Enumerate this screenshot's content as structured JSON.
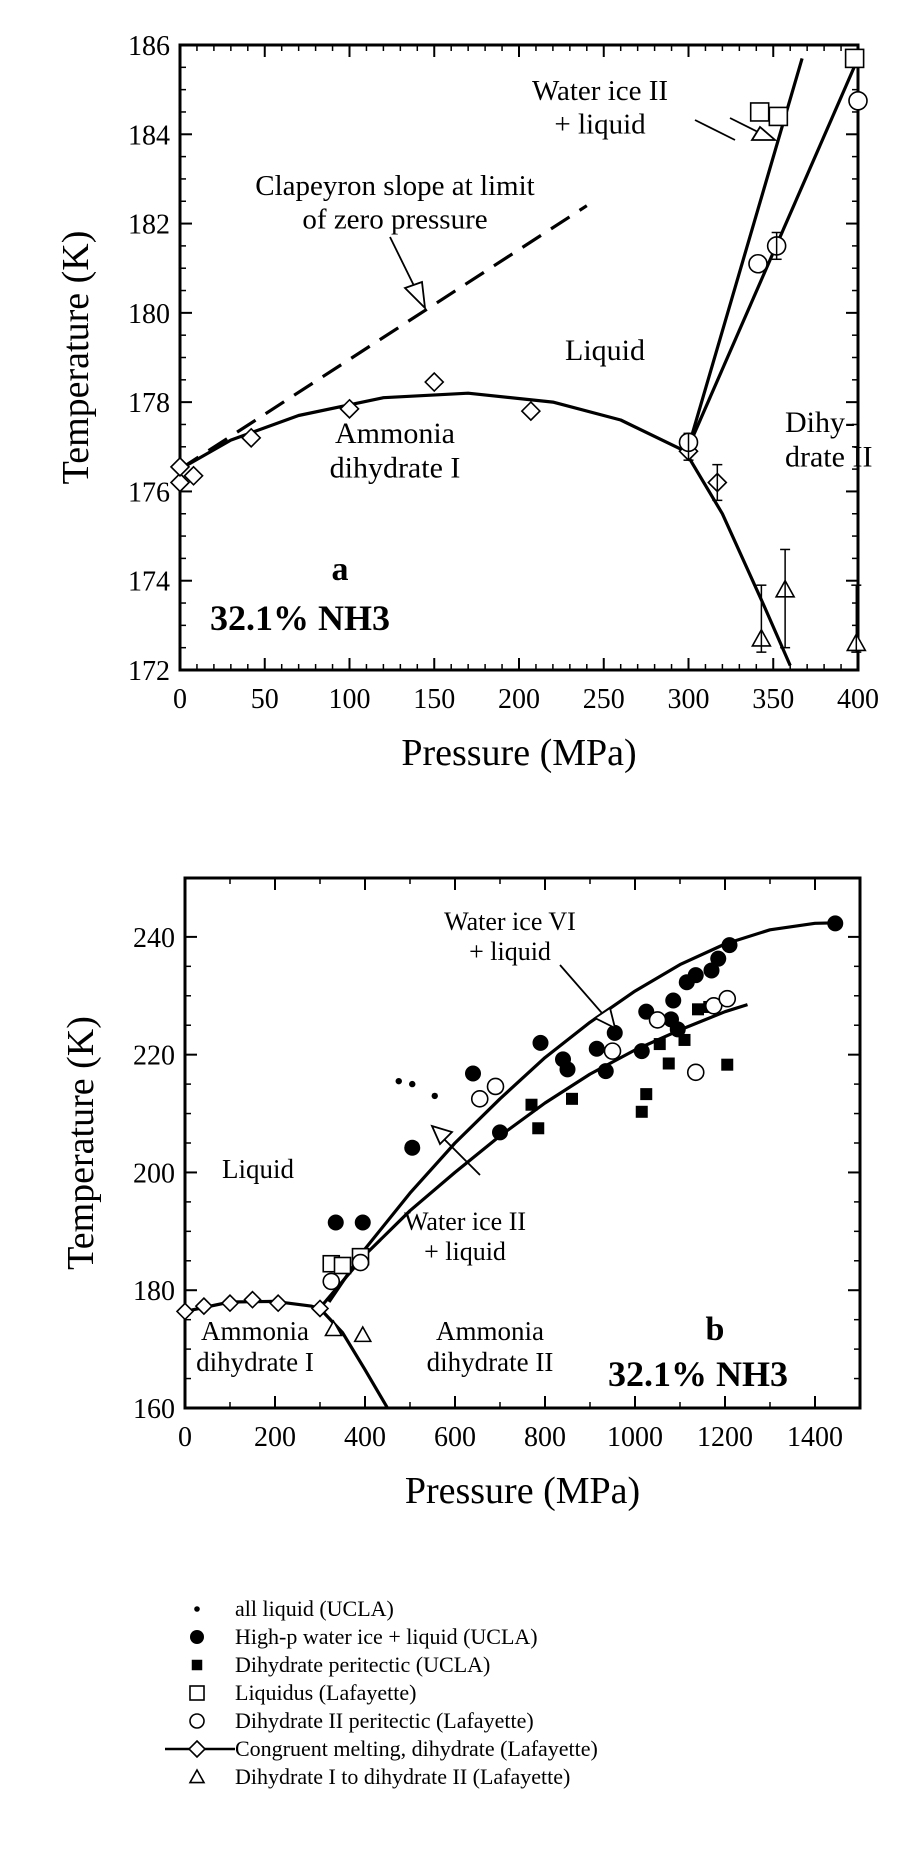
{
  "chart_data": [
    {
      "type": "scatter",
      "panel_label": "a",
      "composition_label": "32.1% NH3",
      "xlabel": "Pressure (MPa)",
      "ylabel": "Temperature (K)",
      "xlim": [
        0,
        400
      ],
      "ylim": [
        172,
        186
      ],
      "xticks": [
        0,
        50,
        100,
        150,
        200,
        250,
        300,
        350,
        400
      ],
      "yticks": [
        172,
        174,
        176,
        178,
        180,
        182,
        184,
        186
      ],
      "region_labels": [
        "Liquid",
        "Ammonia\ndihydrate I",
        "Dihy-\ndrate II"
      ],
      "annotations": [
        "Clapeyron slope at limit\nof zero pressure",
        "Water ice II\n+ liquid"
      ],
      "series": [
        {
          "name": "Congruent melting, dihydrate (Lafayette)",
          "marker": "diamond",
          "points": [
            [
              0,
              176.2
            ],
            [
              0,
              176.55
            ],
            [
              8,
              176.35
            ],
            [
              42,
              177.2
            ],
            [
              100,
              177.85
            ],
            [
              150,
              178.45
            ],
            [
              207,
              177.8
            ],
            [
              300,
              176.9
            ],
            [
              317,
              176.2
            ]
          ]
        },
        {
          "name": "Liquidus (Lafayette)",
          "marker": "square",
          "points": [
            [
              342,
              184.5
            ],
            [
              353,
              184.4
            ],
            [
              398,
              185.7
            ]
          ]
        },
        {
          "name": "Dihydrate II peritectic (Lafayette)",
          "marker": "circle",
          "points": [
            [
              341,
              181.1
            ],
            [
              352,
              181.5
            ],
            [
              400,
              184.75
            ],
            [
              300,
              177.1
            ]
          ]
        },
        {
          "name": "Dihydrate I to dihydrate II (Lafayette)",
          "marker": "triangle",
          "points": [
            [
              343,
              172.7
            ],
            [
              357,
              173.8
            ],
            [
              399,
              172.6
            ]
          ]
        }
      ],
      "curves": [
        {
          "role": "congruent melting curve",
          "style": "solid",
          "points": [
            [
              0,
              176.5
            ],
            [
              30,
              177.15
            ],
            [
              70,
              177.7
            ],
            [
              120,
              178.1
            ],
            [
              170,
              178.2
            ],
            [
              220,
              178.0
            ],
            [
              260,
              177.6
            ],
            [
              298,
              176.9
            ],
            [
              320,
              175.5
            ],
            [
              345,
              173.4
            ],
            [
              360,
              172.1
            ]
          ]
        },
        {
          "role": "water ice II liquidus (steep)",
          "style": "solid",
          "points": [
            [
              300,
              177.0
            ],
            [
              367,
              185.7
            ]
          ]
        },
        {
          "role": "dihydrate II peritectic line",
          "style": "solid",
          "points": [
            [
              300,
              177.0
            ],
            [
              400,
              185.7
            ]
          ]
        },
        {
          "role": "Clapeyron slope",
          "style": "dashed",
          "points": [
            [
              0,
              176.5
            ],
            [
              240,
              182.4
            ]
          ]
        }
      ]
    },
    {
      "type": "scatter",
      "panel_label": "b",
      "composition_label": "32.1% NH3",
      "xlabel": "Pressure (MPa)",
      "ylabel": "Temperature (K)",
      "xlim": [
        0,
        1500
      ],
      "ylim": [
        160,
        250
      ],
      "xticks": [
        0,
        200,
        400,
        600,
        800,
        1000,
        1200,
        1400
      ],
      "yticks": [
        160,
        180,
        200,
        220,
        240
      ],
      "region_labels": [
        "Liquid",
        "Ammonia\ndihydrate I",
        "Ammonia\ndihydrate II"
      ],
      "annotations": [
        "Water ice VI\n+ liquid",
        "Water ice II\n+ liquid"
      ],
      "series": [
        {
          "name": "all liquid (UCLA)",
          "marker": "dot",
          "points": [
            [
              475,
              215.5
            ],
            [
              505,
              215
            ],
            [
              555,
              213
            ]
          ]
        },
        {
          "name": "High-p water ice + liquid (UCLA)",
          "marker": "filled-circle",
          "points": [
            [
              335,
              191.5
            ],
            [
              395,
              191.5
            ],
            [
              505,
              204.2
            ],
            [
              640,
              216.8
            ],
            [
              700,
              206.8
            ],
            [
              790,
              222
            ],
            [
              840,
              219.2
            ],
            [
              850,
              217.5
            ],
            [
              915,
              221
            ],
            [
              935,
              217.2
            ],
            [
              955,
              223.7
            ],
            [
              1015,
              220.6
            ],
            [
              1025,
              227.3
            ],
            [
              1080,
              226
            ],
            [
              1085,
              229.2
            ],
            [
              1095,
              224.3
            ],
            [
              1115,
              232.3
            ],
            [
              1135,
              233.5
            ],
            [
              1170,
              234.3
            ],
            [
              1185,
              236.3
            ],
            [
              1210,
              238.6
            ],
            [
              1445,
              242.3
            ]
          ]
        },
        {
          "name": "Dihydrate peritectic (UCLA)",
          "marker": "filled-square",
          "points": [
            [
              770,
              211.5
            ],
            [
              785,
              207.5
            ],
            [
              860,
              212.5
            ],
            [
              1015,
              210.3
            ],
            [
              1025,
              213.3
            ],
            [
              1055,
              221.8
            ],
            [
              1075,
              218.5
            ],
            [
              1110,
              222.5
            ],
            [
              1140,
              227.7
            ],
            [
              1165,
              228.1
            ],
            [
              1205,
              218.3
            ]
          ]
        },
        {
          "name": "Liquidus (Lafayette)",
          "marker": "square",
          "points": [
            [
              325,
              184.5
            ],
            [
              350,
              184.2
            ],
            [
              390,
              185.7
            ]
          ]
        },
        {
          "name": "Dihydrate II peritectic (Lafayette)",
          "marker": "circle",
          "points": [
            [
              325,
              181.5
            ],
            [
              390,
              184.7
            ],
            [
              655,
              212.5
            ],
            [
              690,
              214.6
            ],
            [
              950,
              220.6
            ],
            [
              1050,
              225.9
            ],
            [
              1135,
              217
            ],
            [
              1175,
              228.3
            ],
            [
              1205,
              229.5
            ]
          ]
        },
        {
          "name": "Congruent melting, dihydrate (Lafayette)",
          "marker": "diamond",
          "points": [
            [
              0,
              176.4
            ],
            [
              42,
              177.3
            ],
            [
              100,
              177.8
            ],
            [
              150,
              178.4
            ],
            [
              207,
              177.8
            ],
            [
              300,
              176.9
            ]
          ]
        },
        {
          "name": "Dihydrate I to dihydrate II (Lafayette)",
          "marker": "triangle",
          "points": [
            [
              330,
              173.4
            ],
            [
              395,
              172.4
            ]
          ]
        }
      ],
      "curves": [
        {
          "role": "water ice VI + liquid",
          "style": "solid",
          "points": [
            [
              320,
              178
            ],
            [
              400,
              187
            ],
            [
              500,
              196.5
            ],
            [
              600,
              205
            ],
            [
              700,
              212.5
            ],
            [
              800,
              219.5
            ],
            [
              900,
              225.5
            ],
            [
              1000,
              230.8
            ],
            [
              1100,
              235.3
            ],
            [
              1200,
              238.8
            ],
            [
              1300,
              241.2
            ],
            [
              1400,
              242.3
            ],
            [
              1450,
              242.4
            ]
          ]
        },
        {
          "name": "water ice II + liquid",
          "style": "solid",
          "points": [
            [
              300,
              177
            ],
            [
              400,
              186
            ],
            [
              500,
              193.5
            ],
            [
              600,
              200
            ],
            [
              700,
              206.2
            ],
            [
              800,
              211.8
            ],
            [
              900,
              216.7
            ],
            [
              1000,
              220.8
            ],
            [
              1100,
              224.2
            ],
            [
              1200,
              227.3
            ],
            [
              1250,
              228.5
            ]
          ]
        },
        {
          "role": "congruent melting curve",
          "style": "solid",
          "points": [
            [
              0,
              176.4
            ],
            [
              100,
              178
            ],
            [
              200,
              178.1
            ],
            [
              280,
              177.3
            ],
            [
              300,
              176.9
            ],
            [
              350,
              172.8
            ],
            [
              400,
              166.5
            ],
            [
              450,
              160
            ]
          ]
        }
      ]
    }
  ],
  "legend": [
    {
      "marker": "dot",
      "label": "all liquid (UCLA)"
    },
    {
      "marker": "filled-circle",
      "label": "High-p water ice + liquid (UCLA)"
    },
    {
      "marker": "filled-square",
      "label": "Dihydrate peritectic (UCLA)"
    },
    {
      "marker": "square",
      "label": "Liquidus (Lafayette)"
    },
    {
      "marker": "circle",
      "label": "Dihydrate II peritectic (Lafayette)"
    },
    {
      "marker": "line-diamond",
      "label": "Congruent melting, dihydrate (Lafayette)"
    },
    {
      "marker": "triangle",
      "label": "Dihydrate I to dihydrate II (Lafayette)"
    }
  ]
}
